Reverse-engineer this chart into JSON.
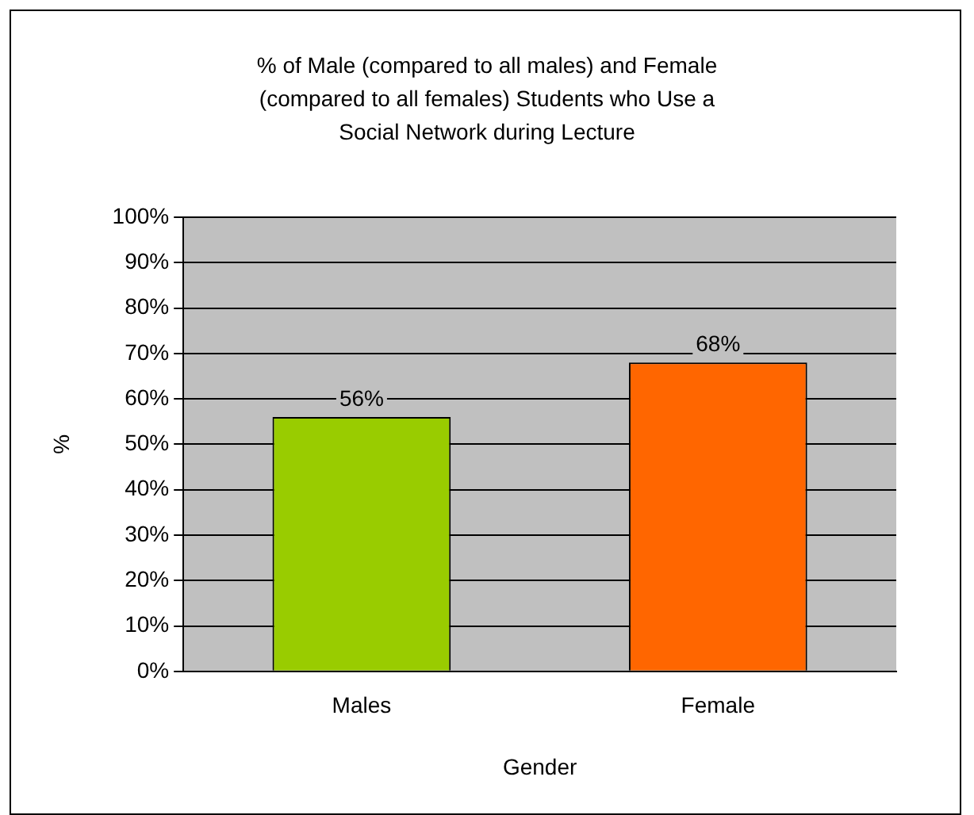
{
  "chart_data": {
    "type": "bar",
    "title": "% of Male (compared to all males) and Female (compared to all females) Students who Use a Social Network during Lecture",
    "xlabel": "Gender",
    "ylabel": "%",
    "categories": [
      "Males",
      "Female"
    ],
    "values": [
      56,
      68
    ],
    "colors": [
      "#99cc00",
      "#ff6600"
    ],
    "ylim": [
      0,
      100
    ],
    "yticks": [
      {
        "value": 0,
        "label": "0%"
      },
      {
        "value": 10,
        "label": "10%"
      },
      {
        "value": 20,
        "label": "20%"
      },
      {
        "value": 30,
        "label": "30%"
      },
      {
        "value": 40,
        "label": "40%"
      },
      {
        "value": 50,
        "label": "50%"
      },
      {
        "value": 60,
        "label": "60%"
      },
      {
        "value": 70,
        "label": "70%"
      },
      {
        "value": 80,
        "label": "80%"
      },
      {
        "value": 90,
        "label": "90%"
      },
      {
        "value": 100,
        "label": "100%"
      }
    ],
    "value_labels": [
      "56%",
      "68%"
    ],
    "grid": "y",
    "legend": false
  }
}
